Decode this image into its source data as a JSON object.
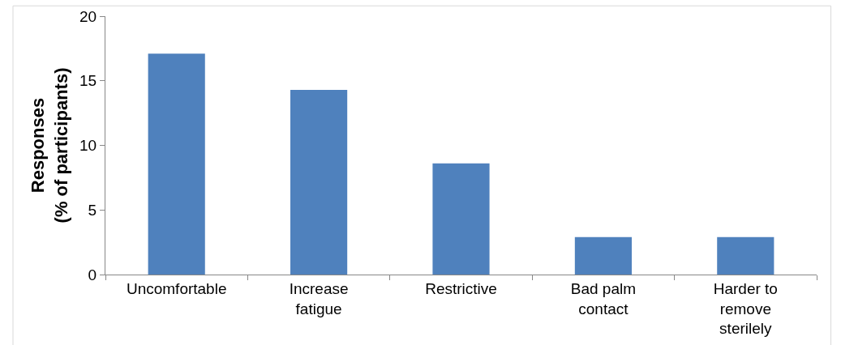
{
  "chart_data": {
    "type": "bar",
    "ylabel": "Responses\n(% of participants)",
    "categories": [
      "Uncomfortable",
      "Increase fatigue",
      "Restrictive",
      "Bad palm contact",
      "Harder to remove sterilely"
    ],
    "values": [
      17.1,
      14.3,
      8.6,
      2.9,
      2.9
    ],
    "color": "#4f81bd",
    "ylim": [
      0,
      20
    ],
    "yticks": [
      0,
      5,
      10,
      15,
      20
    ],
    "grid": false,
    "legend": false
  }
}
